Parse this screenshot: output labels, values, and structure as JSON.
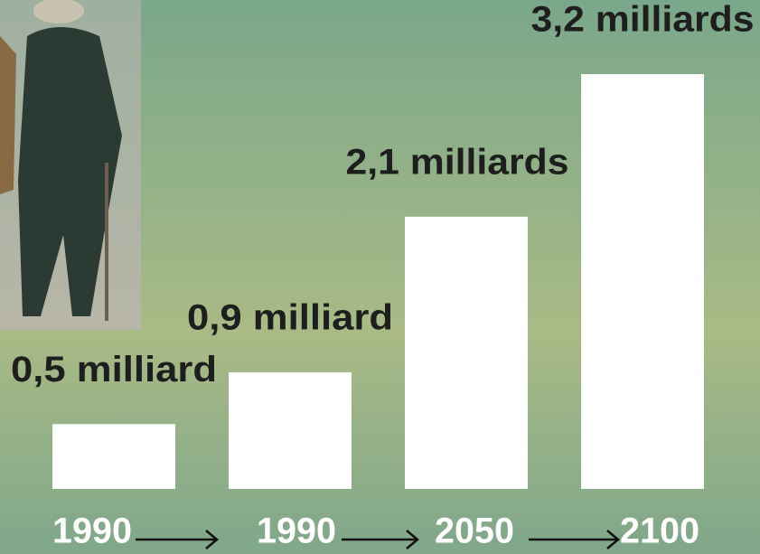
{
  "chart_data": {
    "type": "bar",
    "categories": [
      "1990",
      "1990",
      "2050",
      "2100"
    ],
    "values": [
      0.5,
      0.9,
      2.1,
      3.2
    ],
    "value_labels": [
      "0,5 milliard",
      "0,9 milliard",
      "2,1 milliards",
      "3,2 milliards"
    ],
    "color": "#ffffff"
  }
}
